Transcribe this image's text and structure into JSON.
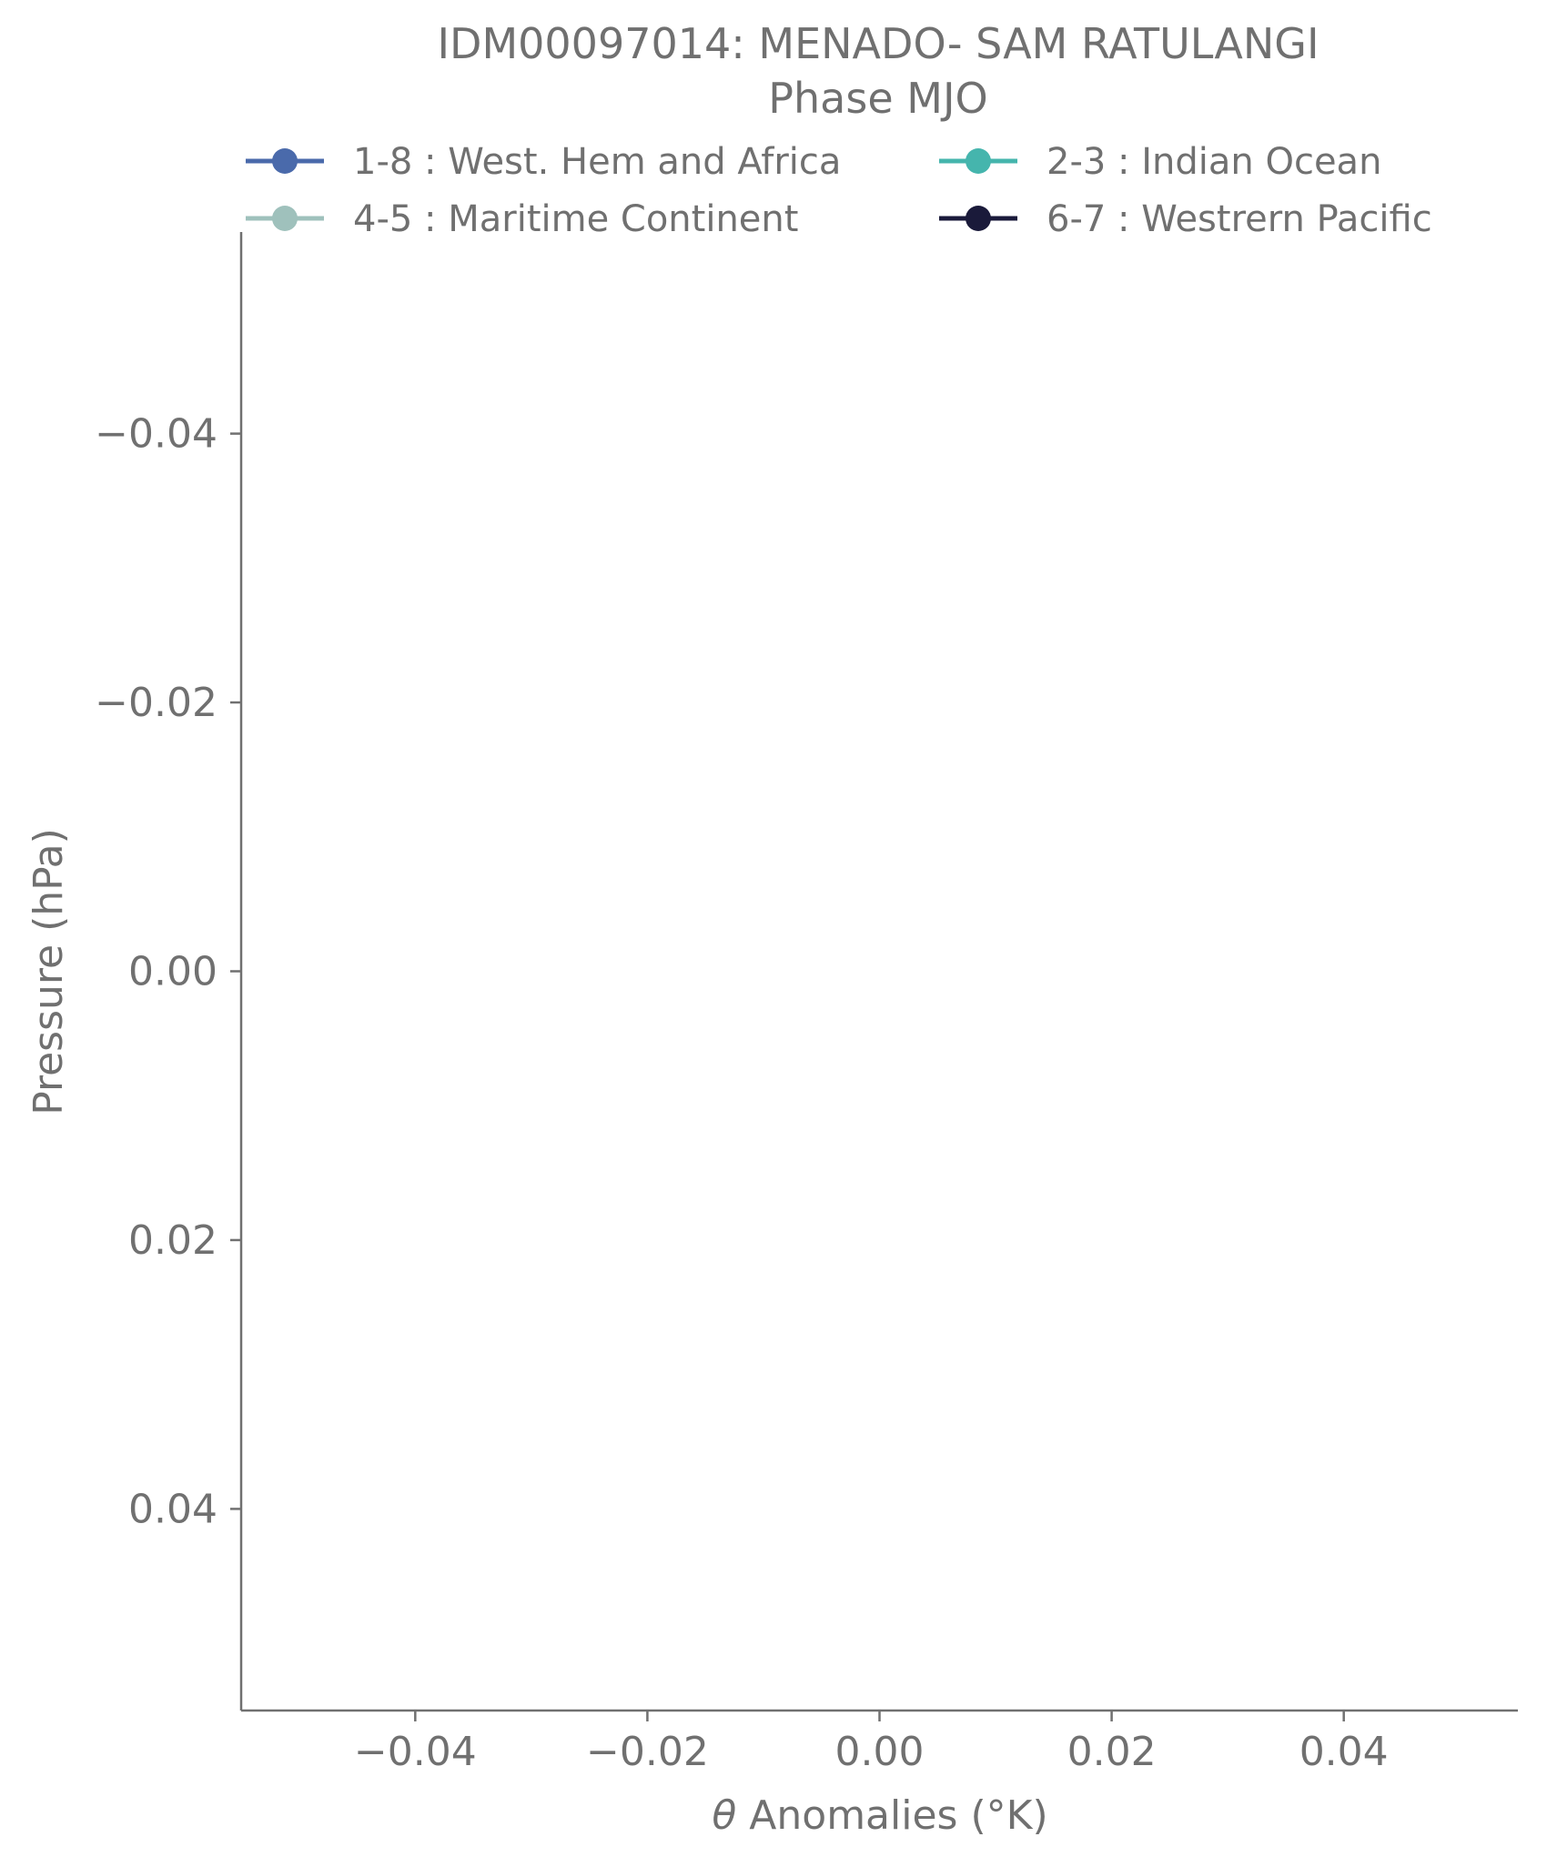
{
  "chart_data": {
    "type": "line",
    "title": "IDM00097014: MENADO- SAM RATULANGI",
    "subtitle": "Phase MJO",
    "xlabel_symbol": "θ",
    "xlabel": "Anomalies (°K)",
    "ylabel": "Pressure (hPa)",
    "xlim": [
      -0.055,
      0.055
    ],
    "ylim": [
      0.055,
      -0.055
    ],
    "y_inverted": true,
    "xticks": [
      -0.04,
      -0.02,
      0.0,
      0.02,
      0.04
    ],
    "xtick_labels": [
      "−0.04",
      "−0.02",
      "0.00",
      "0.02",
      "0.04"
    ],
    "yticks": [
      -0.04,
      -0.02,
      0.0,
      0.02,
      0.04
    ],
    "ytick_labels": [
      "−0.04",
      "−0.02",
      "0.00",
      "0.02",
      "0.04"
    ],
    "grid": false,
    "legend_position": "top",
    "series": [
      {
        "name": "1-8 : West. Hem and Africa",
        "color": "#4a6aab",
        "marker": "circle",
        "x": [],
        "y": []
      },
      {
        "name": "2-3 : Indian Ocean",
        "color": "#45b5ad",
        "marker": "circle",
        "x": [],
        "y": []
      },
      {
        "name": "4-5 : Maritime Continent",
        "color": "#9fc1bc",
        "marker": "circle",
        "x": [],
        "y": []
      },
      {
        "name": "6-7 : Westrern Pacific",
        "color": "#1a1a3a",
        "marker": "circle",
        "x": [],
        "y": []
      }
    ]
  }
}
